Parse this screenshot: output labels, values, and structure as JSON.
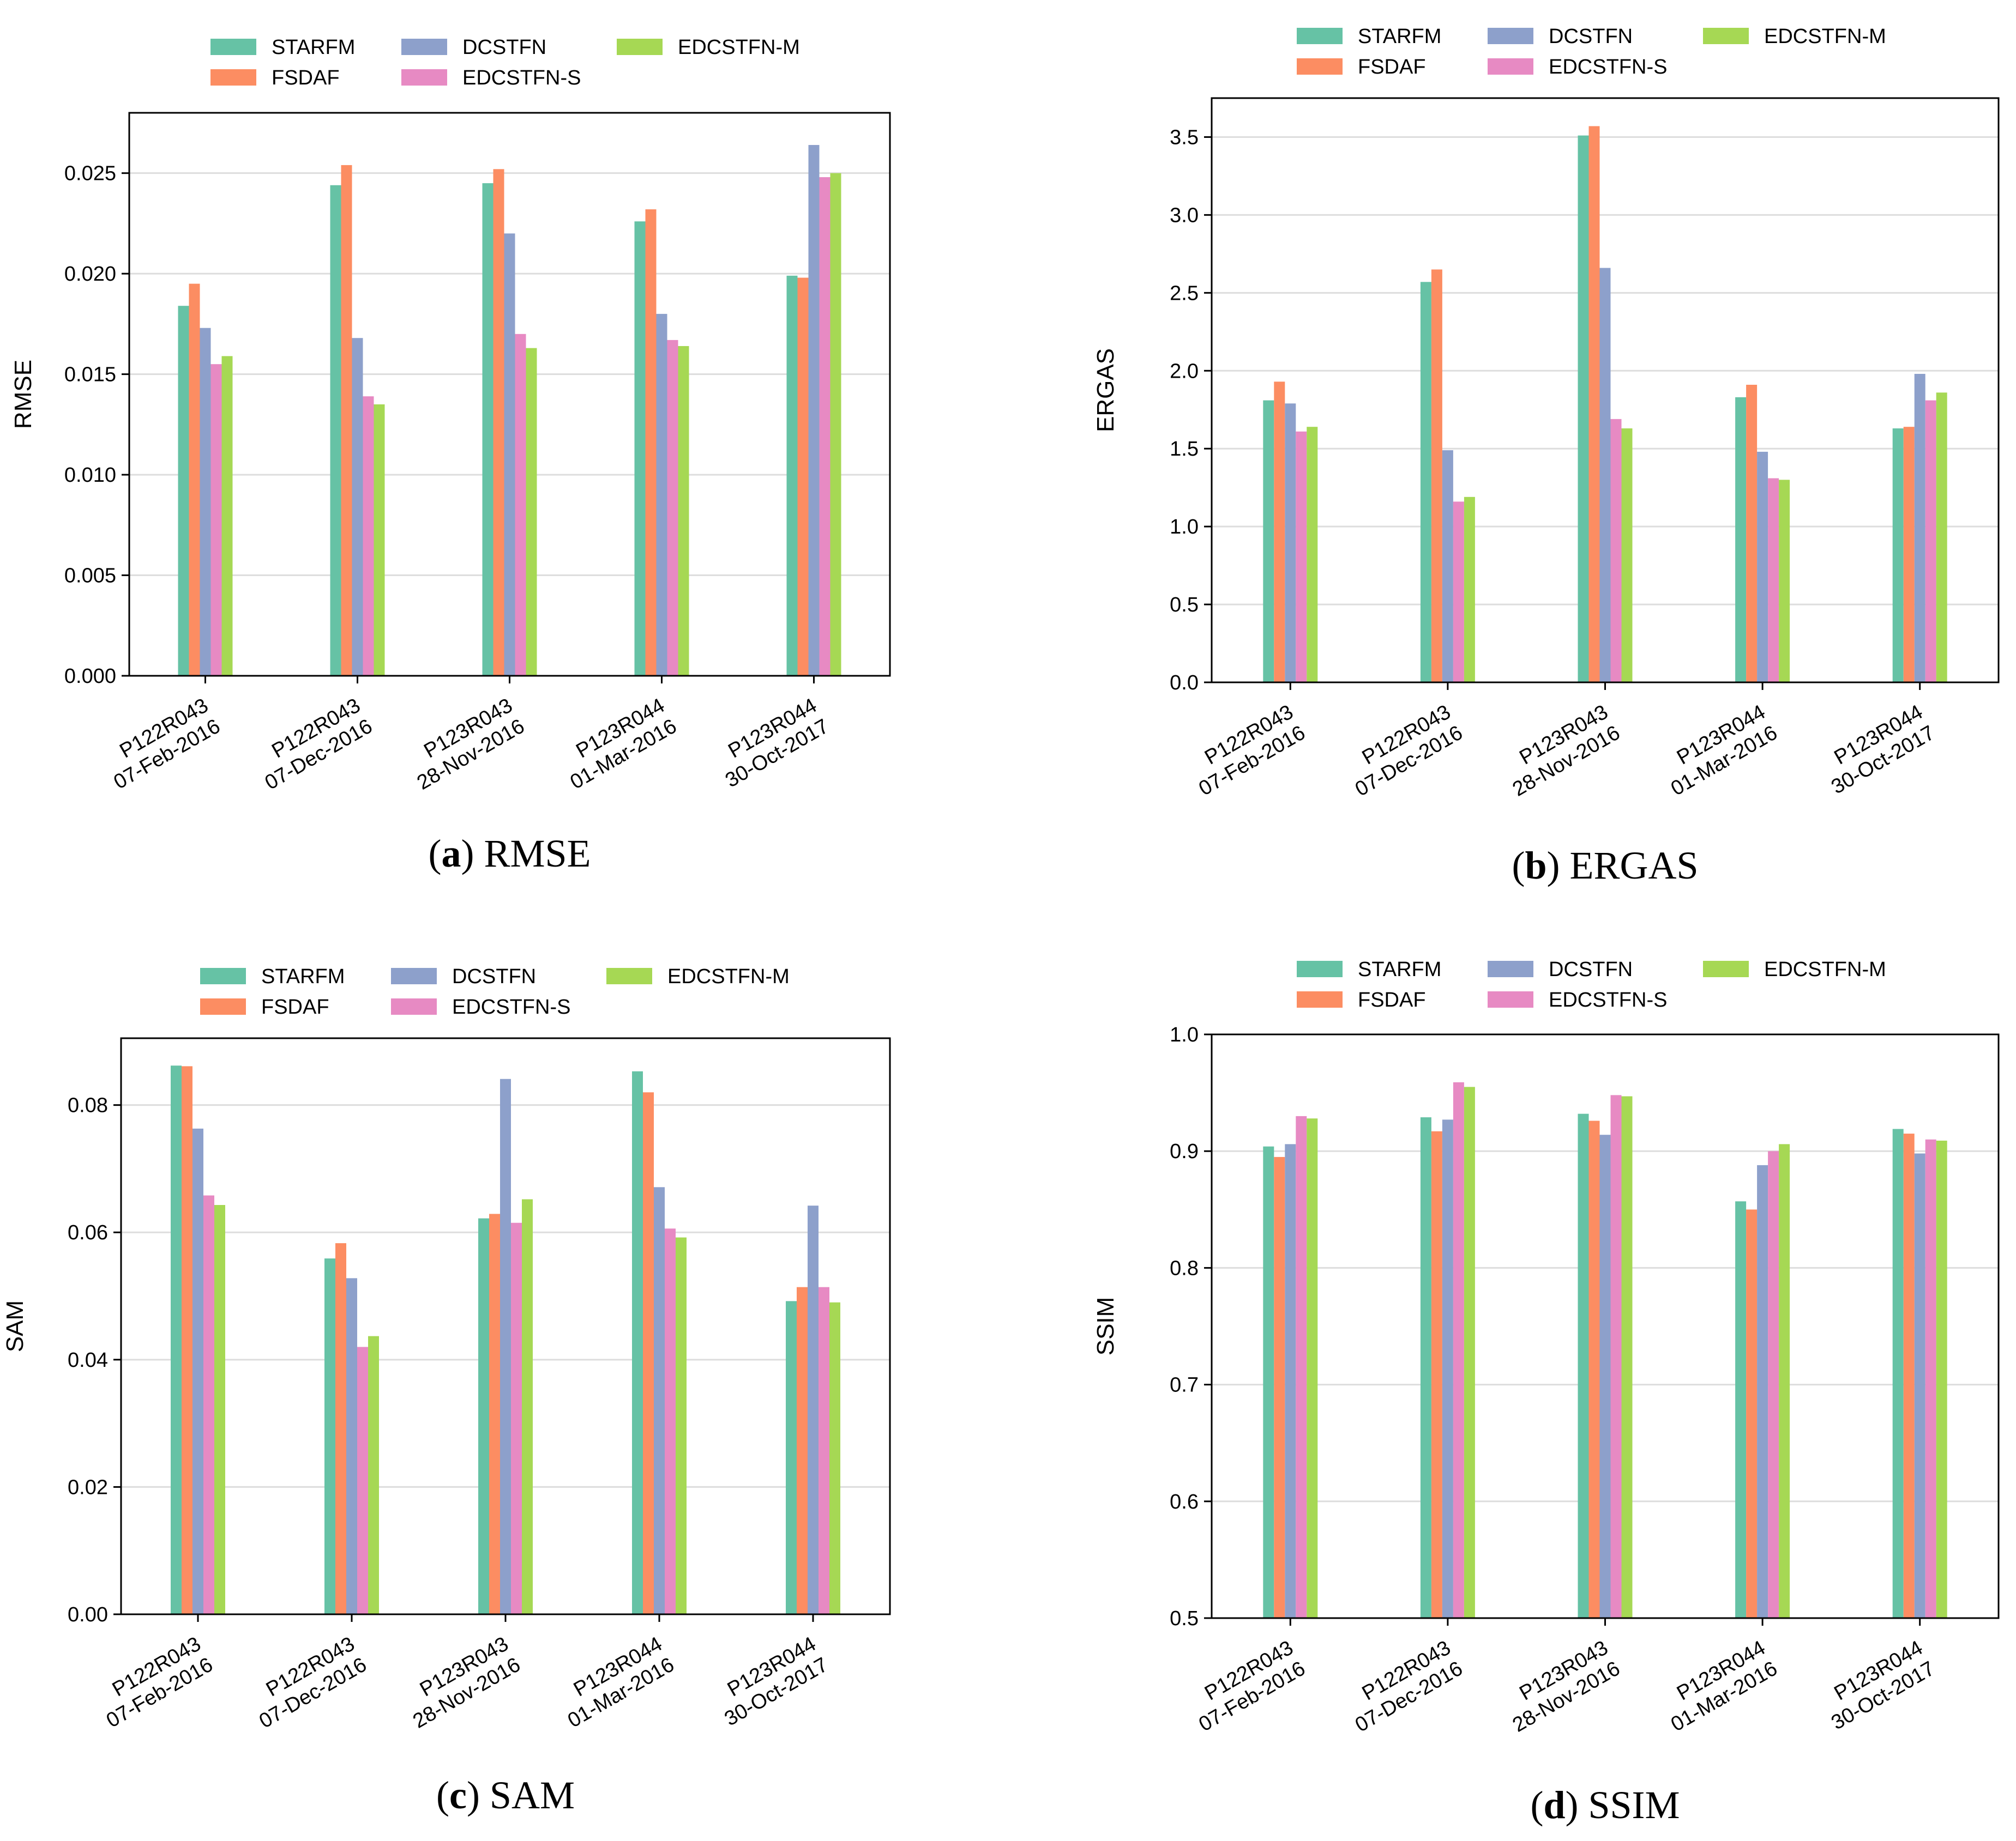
{
  "colors": {
    "STARFM": "#66c2a5",
    "FSDAF": "#fc8d62",
    "DCSTFN": "#8da0cb",
    "EDCSTFN-S": "#e78ac3",
    "EDCSTFN-M": "#a6d854"
  },
  "chart_data": [
    {
      "type": "bar",
      "caption_letter": "a",
      "caption_text": "RMSE",
      "ylabel": "RMSE",
      "ylim": [
        0,
        0.028
      ],
      "yticks": [
        "0.000",
        "0.005",
        "0.010",
        "0.015",
        "0.020",
        "0.025"
      ],
      "ytick_values": [
        0,
        0.005,
        0.01,
        0.015,
        0.02,
        0.025
      ],
      "legend": [
        "STARFM",
        "DCSTFN",
        "EDCSTFN-M",
        "FSDAF",
        "EDCSTFN-S"
      ],
      "categories": [
        [
          "P122R043",
          "07-Feb-2016"
        ],
        [
          "P122R043",
          "07-Dec-2016"
        ],
        [
          "P123R043",
          "28-Nov-2016"
        ],
        [
          "P123R044",
          "01-Mar-2016"
        ],
        [
          "P123R044",
          "30-Oct-2017"
        ]
      ],
      "series": [
        {
          "name": "STARFM",
          "values": [
            0.0184,
            0.0244,
            0.0245,
            0.0226,
            0.0199
          ]
        },
        {
          "name": "FSDAF",
          "values": [
            0.0195,
            0.0254,
            0.0252,
            0.0232,
            0.0198
          ]
        },
        {
          "name": "DCSTFN",
          "values": [
            0.0173,
            0.0168,
            0.022,
            0.018,
            0.0264
          ]
        },
        {
          "name": "EDCSTFN-S",
          "values": [
            0.0155,
            0.0139,
            0.017,
            0.0167,
            0.0248
          ]
        },
        {
          "name": "EDCSTFN-M",
          "values": [
            0.0159,
            0.0135,
            0.0163,
            0.0164,
            0.025
          ]
        }
      ]
    },
    {
      "type": "bar",
      "caption_letter": "b",
      "caption_text": "ERGAS",
      "ylabel": "ERGAS",
      "ylim": [
        0,
        3.75
      ],
      "yticks": [
        "0.0",
        "0.5",
        "1.0",
        "1.5",
        "2.0",
        "2.5",
        "3.0",
        "3.5"
      ],
      "ytick_values": [
        0,
        0.5,
        1.0,
        1.5,
        2.0,
        2.5,
        3.0,
        3.5
      ],
      "legend": [
        "STARFM",
        "DCSTFN",
        "EDCSTFN-M",
        "FSDAF",
        "EDCSTFN-S"
      ],
      "categories": [
        [
          "P122R043",
          "07-Feb-2016"
        ],
        [
          "P122R043",
          "07-Dec-2016"
        ],
        [
          "P123R043",
          "28-Nov-2016"
        ],
        [
          "P123R044",
          "01-Mar-2016"
        ],
        [
          "P123R044",
          "30-Oct-2017"
        ]
      ],
      "series": [
        {
          "name": "STARFM",
          "values": [
            1.81,
            2.57,
            3.51,
            1.83,
            1.63
          ]
        },
        {
          "name": "FSDAF",
          "values": [
            1.93,
            2.65,
            3.57,
            1.91,
            1.64
          ]
        },
        {
          "name": "DCSTFN",
          "values": [
            1.79,
            1.49,
            2.66,
            1.48,
            1.98
          ]
        },
        {
          "name": "EDCSTFN-S",
          "values": [
            1.61,
            1.16,
            1.69,
            1.31,
            1.81
          ]
        },
        {
          "name": "EDCSTFN-M",
          "values": [
            1.64,
            1.19,
            1.63,
            1.3,
            1.86
          ]
        }
      ]
    },
    {
      "type": "bar",
      "caption_letter": "c",
      "caption_text": "SAM",
      "ylabel": "SAM",
      "ylim": [
        0,
        0.0905
      ],
      "yticks": [
        "0.00",
        "0.02",
        "0.04",
        "0.06",
        "0.08"
      ],
      "ytick_values": [
        0,
        0.02,
        0.04,
        0.06,
        0.08
      ],
      "legend": [
        "STARFM",
        "DCSTFN",
        "EDCSTFN-M",
        "FSDAF",
        "EDCSTFN-S"
      ],
      "categories": [
        [
          "P122R043",
          "07-Feb-2016"
        ],
        [
          "P122R043",
          "07-Dec-2016"
        ],
        [
          "P123R043",
          "28-Nov-2016"
        ],
        [
          "P123R044",
          "01-Mar-2016"
        ],
        [
          "P123R044",
          "30-Oct-2017"
        ]
      ],
      "series": [
        {
          "name": "STARFM",
          "values": [
            0.0862,
            0.0559,
            0.0622,
            0.0853,
            0.0492
          ]
        },
        {
          "name": "FSDAF",
          "values": [
            0.0861,
            0.0583,
            0.0629,
            0.082,
            0.0514
          ]
        },
        {
          "name": "DCSTFN",
          "values": [
            0.0763,
            0.0528,
            0.0841,
            0.0671,
            0.0642
          ]
        },
        {
          "name": "EDCSTFN-S",
          "values": [
            0.0658,
            0.042,
            0.0615,
            0.0606,
            0.0514
          ]
        },
        {
          "name": "EDCSTFN-M",
          "values": [
            0.0643,
            0.0437,
            0.0652,
            0.0592,
            0.049
          ]
        }
      ]
    },
    {
      "type": "bar",
      "caption_letter": "d",
      "caption_text": "SSIM",
      "ylabel": "SSIM",
      "ylim": [
        0.5,
        1.0
      ],
      "yticks": [
        "0.5",
        "0.6",
        "0.7",
        "0.8",
        "0.9",
        "1.0"
      ],
      "ytick_values": [
        0.5,
        0.6,
        0.7,
        0.8,
        0.9,
        1.0
      ],
      "legend": [
        "STARFM",
        "DCSTFN",
        "EDCSTFN-M",
        "FSDAF",
        "EDCSTFN-S"
      ],
      "categories": [
        [
          "P122R043",
          "07-Feb-2016"
        ],
        [
          "P122R043",
          "07-Dec-2016"
        ],
        [
          "P123R043",
          "28-Nov-2016"
        ],
        [
          "P123R044",
          "01-Mar-2016"
        ],
        [
          "P123R044",
          "30-Oct-2017"
        ]
      ],
      "series": [
        {
          "name": "STARFM",
          "values": [
            0.904,
            0.929,
            0.932,
            0.857,
            0.919
          ]
        },
        {
          "name": "FSDAF",
          "values": [
            0.895,
            0.917,
            0.926,
            0.85,
            0.915
          ]
        },
        {
          "name": "DCSTFN",
          "values": [
            0.906,
            0.927,
            0.914,
            0.888,
            0.898
          ]
        },
        {
          "name": "EDCSTFN-S",
          "values": [
            0.93,
            0.959,
            0.948,
            0.9,
            0.91
          ]
        },
        {
          "name": "EDCSTFN-M",
          "values": [
            0.928,
            0.955,
            0.947,
            0.906,
            0.909
          ]
        }
      ]
    }
  ]
}
